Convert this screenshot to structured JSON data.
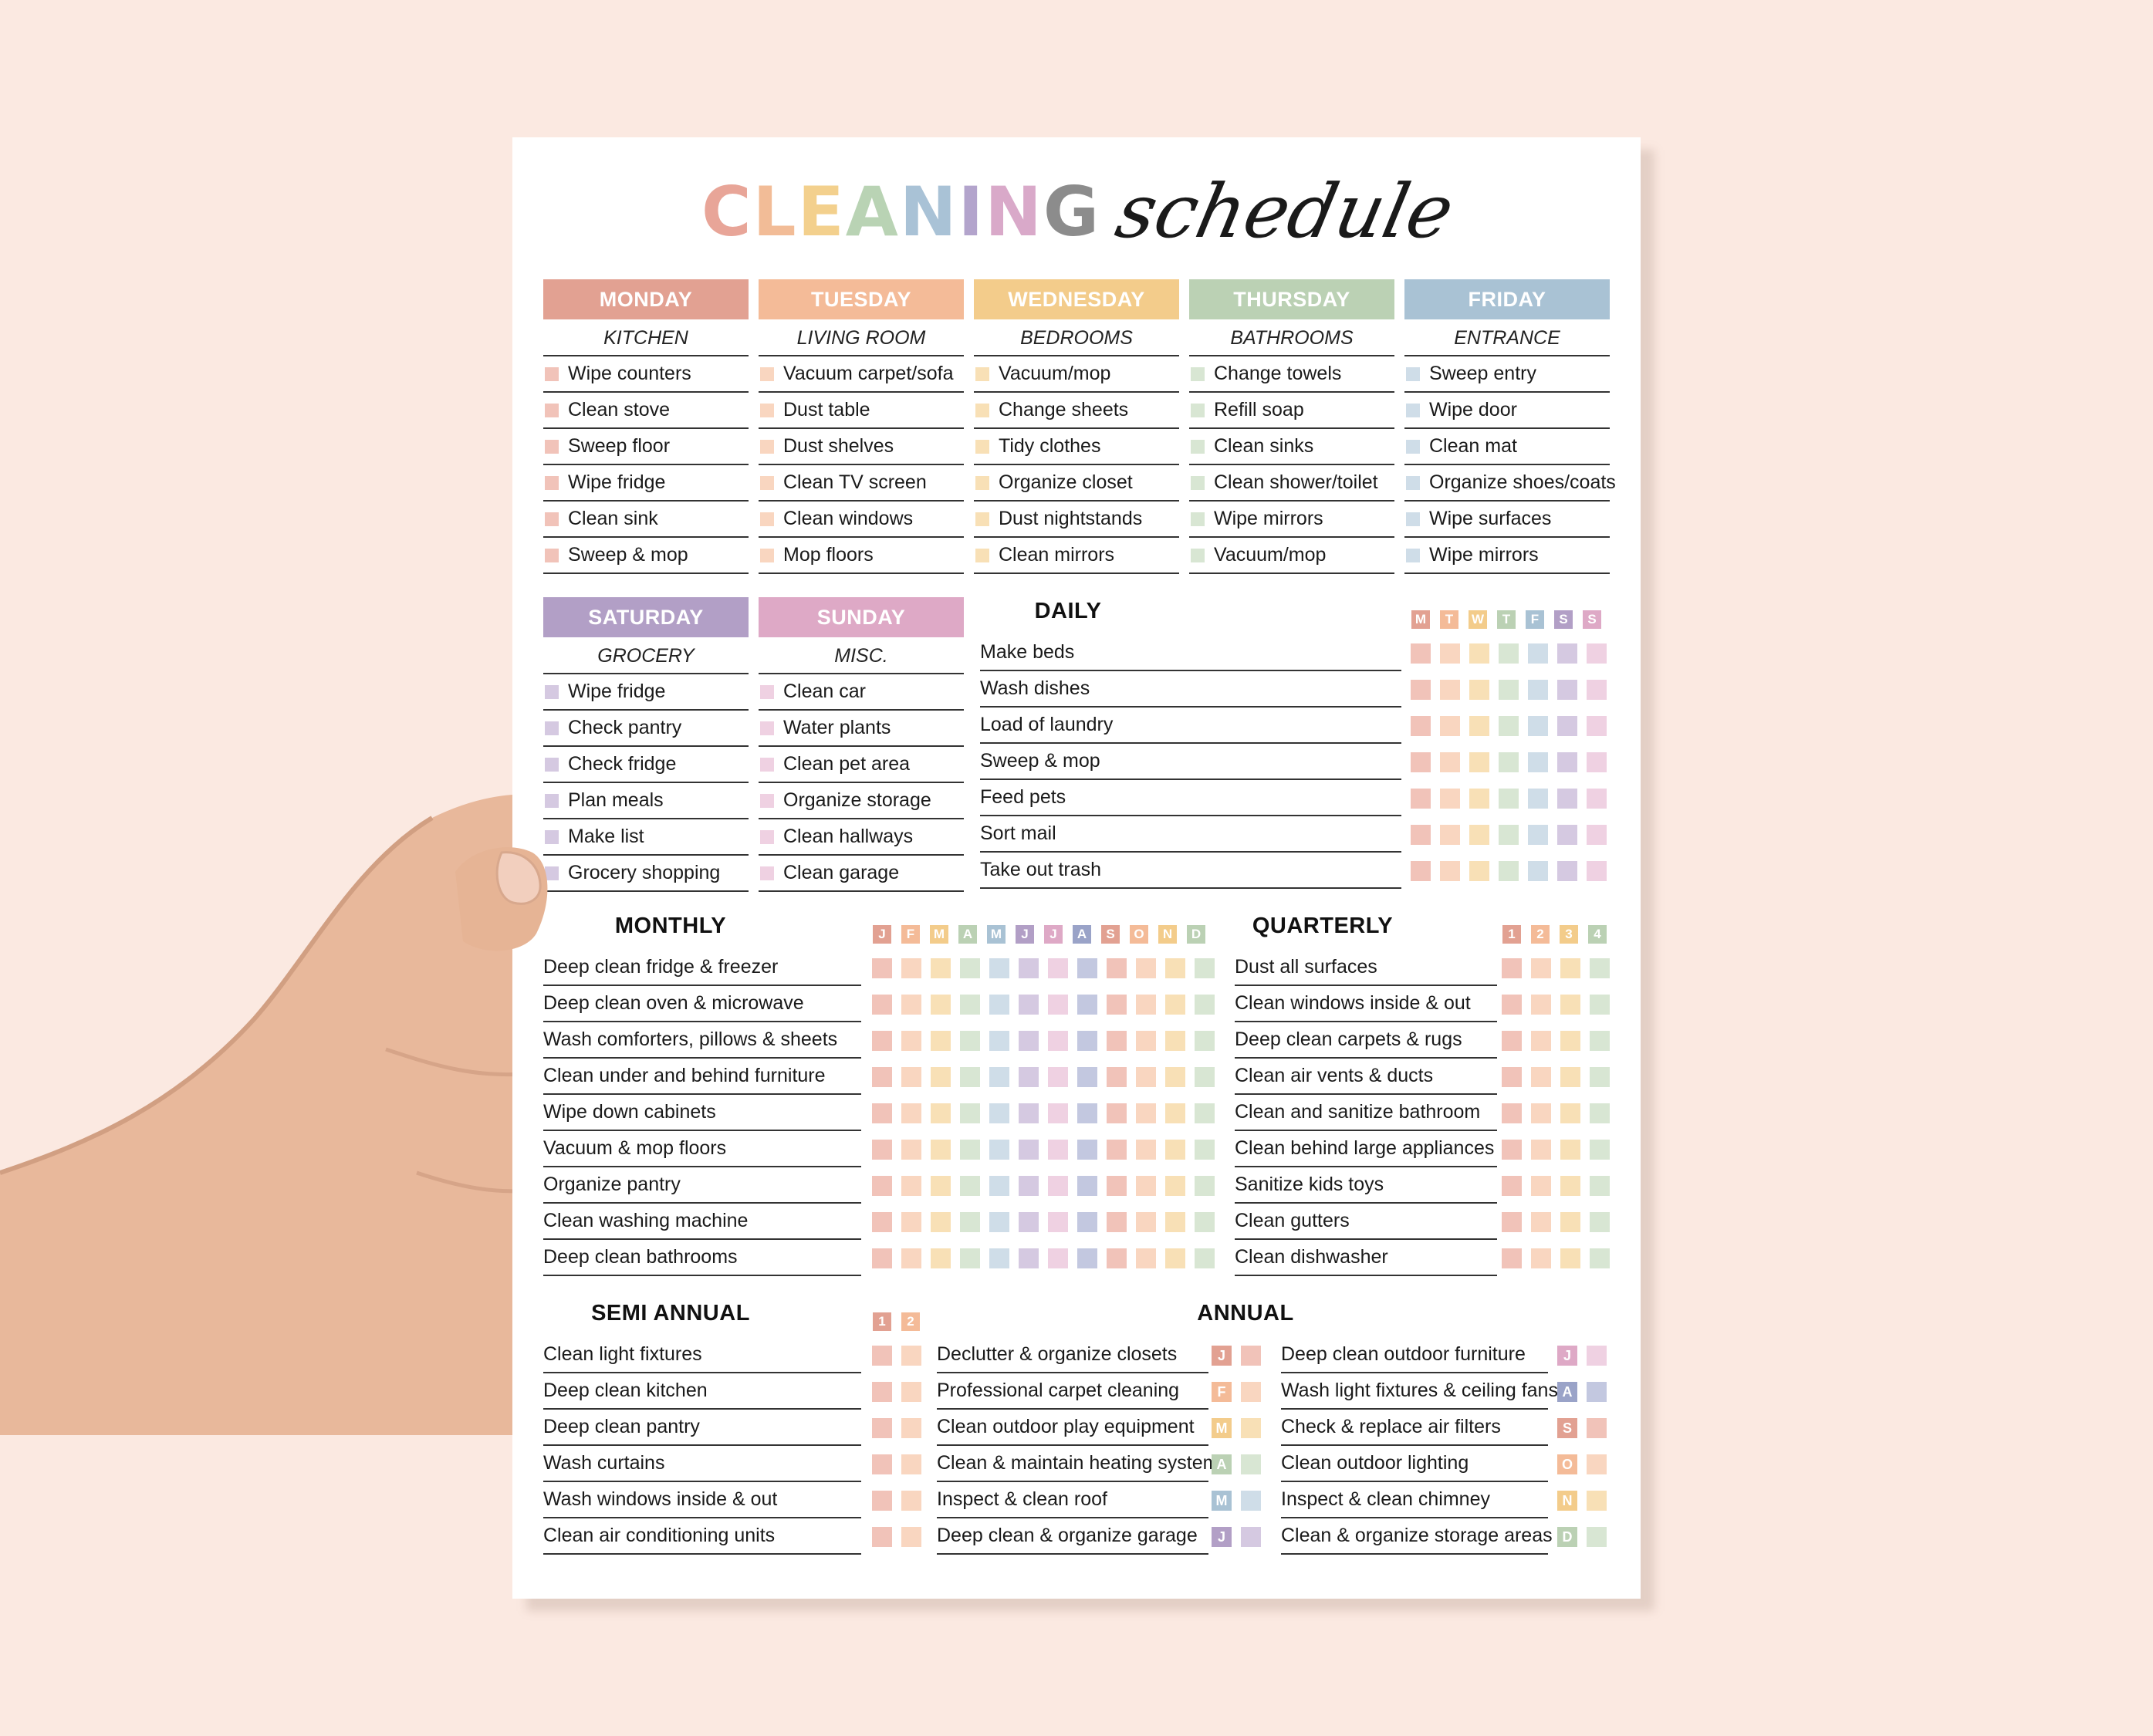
{
  "title": {
    "caps_letters": [
      "C",
      "L",
      "E",
      "A",
      "N",
      "I",
      "N",
      "G"
    ],
    "caps_colors": [
      "#e8a598",
      "#f2bc97",
      "#f3d08d",
      "#b9d3b4",
      "#a9c2d6",
      "#b3a4cc",
      "#d9a9c9",
      "#8c8c8c"
    ],
    "script": "schedule"
  },
  "days": [
    {
      "name": "MONDAY",
      "area": "KITCHEN",
      "color": "#e2a192",
      "box": "#f1c3b9",
      "tasks": [
        "Wipe counters",
        "Clean stove",
        "Sweep floor",
        "Wipe fridge",
        "Clean sink",
        "Sweep & mop"
      ]
    },
    {
      "name": "TUESDAY",
      "area": "LIVING ROOM",
      "color": "#f4bb98",
      "box": "#f9d6c0",
      "tasks": [
        "Vacuum carpet/sofa",
        "Dust table",
        "Dust shelves",
        "Clean TV screen",
        "Clean windows",
        "Mop floors"
      ]
    },
    {
      "name": "WEDNESDAY",
      "area": "BEDROOMS",
      "color": "#f3cc8b",
      "box": "#f8e0b6",
      "tasks": [
        "Vacuum/mop",
        "Change sheets",
        "Tidy clothes",
        "Organize closet",
        "Dust nightstands",
        "Clean mirrors"
      ]
    },
    {
      "name": "THURSDAY",
      "area": "BATHROOMS",
      "color": "#bbd1b4",
      "box": "#d8e6d3",
      "tasks": [
        "Change towels",
        "Refill soap",
        "Clean sinks",
        "Clean shower/toilet",
        "Wipe mirrors",
        "Vacuum/mop"
      ]
    },
    {
      "name": "FRIDAY",
      "area": "ENTRANCE",
      "color": "#a9c2d4",
      "box": "#cfdde8",
      "tasks": [
        "Sweep entry",
        "Wipe door",
        "Clean mat",
        "Organize shoes/coats",
        "Wipe surfaces",
        "Wipe mirrors"
      ]
    },
    {
      "name": "SATURDAY",
      "area": "GROCERY",
      "color": "#b29fc6",
      "box": "#d5c9e1",
      "tasks": [
        "Wipe fridge",
        "Check pantry",
        "Check fridge",
        "Plan meals",
        "Make list",
        "Grocery shopping"
      ]
    },
    {
      "name": "SUNDAY",
      "area": "MISC.",
      "color": "#dea9c6",
      "box": "#efd1e2",
      "tasks": [
        "Clean car",
        "Water plants",
        "Clean pet area",
        "Organize storage",
        "Clean hallways",
        "Clean garage"
      ]
    }
  ],
  "daily": {
    "title": "DAILY",
    "headers": [
      "M",
      "T",
      "W",
      "T",
      "F",
      "S",
      "S"
    ],
    "header_colors": [
      "#e2a192",
      "#f4bb98",
      "#f3cc8b",
      "#bbd1b4",
      "#a9c2d4",
      "#b29fc6",
      "#dea9c6"
    ],
    "cell_colors": [
      "#f1c3b9",
      "#f9d6c0",
      "#f8e0b6",
      "#d8e6d3",
      "#cfdde8",
      "#d5c9e1",
      "#efd1e2"
    ],
    "tasks": [
      "Make beds",
      "Wash dishes",
      "Load of laundry",
      "Sweep & mop",
      "Feed pets",
      "Sort mail",
      "Take out trash"
    ]
  },
  "monthly": {
    "title": "MONTHLY",
    "headers": [
      "J",
      "F",
      "M",
      "A",
      "M",
      "J",
      "J",
      "A",
      "S",
      "O",
      "N",
      "D"
    ],
    "header_colors": [
      "#e2a192",
      "#f4bb98",
      "#f3cc8b",
      "#bbd1b4",
      "#a9c2d4",
      "#b29fc6",
      "#dea9c6",
      "#9aa3c8",
      "#e2a192",
      "#f4bb98",
      "#f3cc8b",
      "#bbd1b4"
    ],
    "cell_colors": [
      "#f1c3b9",
      "#f9d6c0",
      "#f8e0b6",
      "#d8e6d3",
      "#cfdde8",
      "#d5c9e1",
      "#efd1e2",
      "#c3c8e0",
      "#f1c3b9",
      "#f9d6c0",
      "#f8e0b6",
      "#d8e6d3"
    ],
    "tasks": [
      "Deep clean fridge & freezer",
      "Deep clean oven & microwave",
      "Wash comforters, pillows & sheets",
      "Clean under and behind furniture",
      "Wipe down cabinets",
      "Vacuum & mop floors",
      "Organize pantry",
      "Clean washing machine",
      "Deep clean bathrooms"
    ]
  },
  "quarterly": {
    "title": "QUARTERLY",
    "headers": [
      "1",
      "2",
      "3",
      "4"
    ],
    "header_colors": [
      "#e2a192",
      "#f4bb98",
      "#f3cc8b",
      "#bbd1b4"
    ],
    "cell_colors": [
      "#f1c3b9",
      "#f9d6c0",
      "#f8e0b6",
      "#d8e6d3"
    ],
    "tasks": [
      "Dust all surfaces",
      "Clean windows inside & out",
      "Deep clean carpets & rugs",
      "Clean air vents & ducts",
      "Clean and sanitize bathroom",
      "Clean behind large appliances",
      "Sanitize kids toys",
      "Clean gutters",
      "Clean dishwasher"
    ]
  },
  "semi_annual": {
    "title": "SEMI ANNUAL",
    "headers": [
      "1",
      "2"
    ],
    "header_colors": [
      "#e2a192",
      "#f4bb98"
    ],
    "cell_colors": [
      "#f1c3b9",
      "#f9d6c0"
    ],
    "tasks": [
      "Clean light fixtures",
      "Deep clean kitchen",
      "Deep clean pantry",
      "Wash curtains",
      "Wash windows inside & out",
      "Clean air conditioning units"
    ]
  },
  "annual": {
    "title": "ANNUAL",
    "left": {
      "tasks": [
        "Declutter & organize closets",
        "Professional carpet cleaning",
        "Clean outdoor play equipment",
        "Clean & maintain heating systems",
        "Inspect & clean roof",
        "Deep clean & organize garage"
      ],
      "markers": [
        "J",
        "F",
        "M",
        "A",
        "M",
        "J"
      ],
      "marker_colors": [
        "#e2a192",
        "#f4bb98",
        "#f3cc8b",
        "#bbd1b4",
        "#a9c2d4",
        "#b29fc6"
      ],
      "cell_colors": [
        "#f1c3b9",
        "#f9d6c0",
        "#f8e0b6",
        "#d8e6d3",
        "#cfdde8",
        "#d5c9e1"
      ]
    },
    "right": {
      "tasks": [
        "Deep clean outdoor furniture",
        "Wash light fixtures & ceiling fans",
        "Check & replace air filters",
        "Clean outdoor lighting",
        "Inspect & clean chimney",
        "Clean & organize storage areas"
      ],
      "markers": [
        "J",
        "A",
        "S",
        "O",
        "N",
        "D"
      ],
      "marker_colors": [
        "#dea9c6",
        "#9aa3c8",
        "#e2a192",
        "#f4bb98",
        "#f3cc8b",
        "#bbd1b4"
      ],
      "cell_colors": [
        "#efd1e2",
        "#c3c8e0",
        "#f1c3b9",
        "#f9d6c0",
        "#f8e0b6",
        "#d8e6d3"
      ]
    }
  }
}
